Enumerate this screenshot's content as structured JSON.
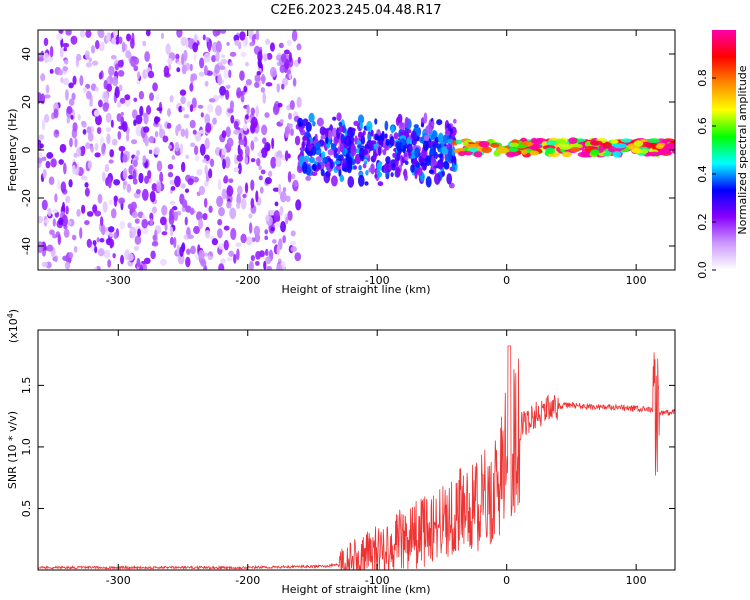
{
  "title": "C2E6.2023.245.04.48.R17",
  "chart_data": [
    {
      "type": "heatmap",
      "xlabel": "Height of straight line (km)",
      "ylabel": "Frequency (Hz)",
      "xlim": [
        -362,
        130
      ],
      "ylim": [
        -50,
        50
      ],
      "x_ticks": [
        -300,
        -200,
        -100,
        0,
        100
      ],
      "y_ticks": [
        -40,
        -20,
        0,
        20,
        40
      ],
      "colorbar": {
        "label": "Normalized spectral amplitude",
        "range": [
          0,
          1
        ],
        "ticks": [
          "0.0",
          "0.2",
          "0.4",
          "0.6",
          "0.8"
        ],
        "colors": [
          "#ffffff",
          "#cc99ff",
          "#8800ff",
          "#0000ff",
          "#00ffff",
          "#00ff00",
          "#ffff00",
          "#ff8800",
          "#ff0000",
          "#ff00aa"
        ]
      },
      "description_regions": [
        {
          "x_range": [
            -362,
            -160
          ],
          "freq_range": [
            -50,
            50
          ],
          "amplitude": 0.05
        },
        {
          "x_range": [
            -160,
            -40
          ],
          "freq_range": [
            -15,
            15
          ],
          "amplitude": 0.3
        },
        {
          "x_range": [
            -40,
            130
          ],
          "freq_range": [
            -2,
            4
          ],
          "amplitude": 0.85
        }
      ]
    },
    {
      "type": "line",
      "xlabel": "Height of straight line (km)",
      "ylabel": "SNR (10 * v/v)",
      "y_multiplier": "(x10",
      "y_multiplier_exp": "4",
      "y_multiplier_close": ")",
      "xlim": [
        -362,
        130
      ],
      "ylim": [
        0,
        1.95
      ],
      "x_ticks": [
        -300,
        -200,
        -100,
        0,
        100
      ],
      "y_ticks": [
        "0.5",
        "1.0",
        "1.5"
      ],
      "y_tick_values": [
        0.5,
        1.0,
        1.5
      ],
      "color": "#ee3333",
      "series": [
        {
          "x": [
            -362,
            -300,
            -200,
            -140,
            -120,
            -100,
            -80,
            -60,
            -40,
            -20,
            -10,
            -5,
            0,
            10,
            20,
            30,
            40,
            50,
            60,
            80,
            100,
            110,
            115,
            118,
            122,
            130
          ],
          "y": [
            0.02,
            0.02,
            0.02,
            0.03,
            0.06,
            0.15,
            0.25,
            0.33,
            0.45,
            0.55,
            0.62,
            0.75,
            0.95,
            1.15,
            1.25,
            1.3,
            1.33,
            1.34,
            1.33,
            1.32,
            1.31,
            1.3,
            1.29,
            1.28,
            1.28,
            1.28
          ]
        }
      ]
    }
  ]
}
